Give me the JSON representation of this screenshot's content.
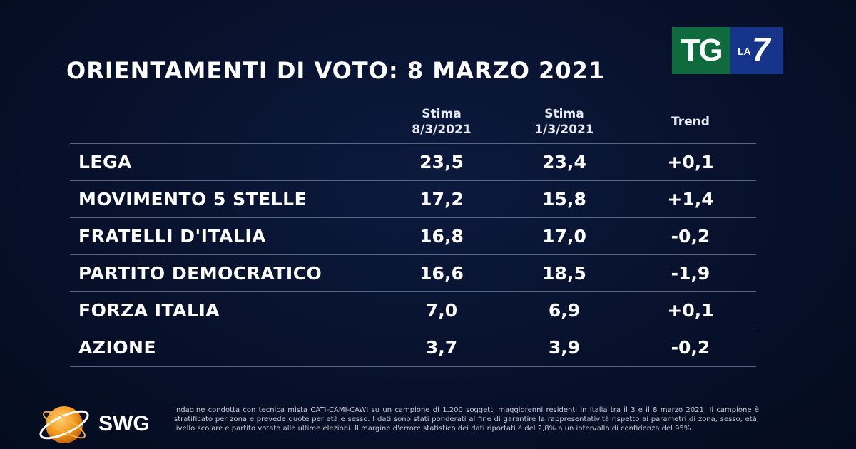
{
  "title": "ORIENTAMENTI DI VOTO: 8 MARZO 2021",
  "broadcaster_logo": {
    "tg": "TG",
    "la": "LA",
    "seven": "7"
  },
  "table": {
    "headers": {
      "col1_line1": "Stima",
      "col1_line2": "8/3/2021",
      "col2_line1": "Stima",
      "col2_line2": "1/3/2021",
      "col3": "Trend"
    },
    "rows": [
      {
        "party": "LEGA",
        "v1": "23,5",
        "v2": "23,4",
        "trend": "+0,1"
      },
      {
        "party": "MOVIMENTO 5 STELLE",
        "v1": "17,2",
        "v2": "15,8",
        "trend": "+1,4"
      },
      {
        "party": "FRATELLI D'ITALIA",
        "v1": "16,8",
        "v2": "17,0",
        "trend": "-0,2"
      },
      {
        "party": "PARTITO DEMOCRATICO",
        "v1": "16,6",
        "v2": "18,5",
        "trend": "-1,9"
      },
      {
        "party": "FORZA ITALIA",
        "v1": "7,0",
        "v2": "6,9",
        "trend": "+0,1"
      },
      {
        "party": "AZIONE",
        "v1": "3,7",
        "v2": "3,9",
        "trend": "-0,2"
      }
    ]
  },
  "pollster": {
    "name": "SWG",
    "logo_icon": "swg-globe-icon",
    "logo_color": "#f39a1e"
  },
  "footnote": "Indagine condotta con tecnica mista CATI-CAMI-CAWI su un campione di 1.200 soggetti maggiorenni residenti in Italia tra il 3 e il 8 marzo 2021. Il campione è stratificato per zona e prevede quote per età e sesso. I dati sono stati ponderati al fine di garantire la rappresentatività rispetto ai parametri di zona, sesso, età, livello scolare e partito votato alle ultime elezioni. Il margine d'errore statistico dei dati riportati è del 2,8% a un intervallo di confidenza del 95%."
}
